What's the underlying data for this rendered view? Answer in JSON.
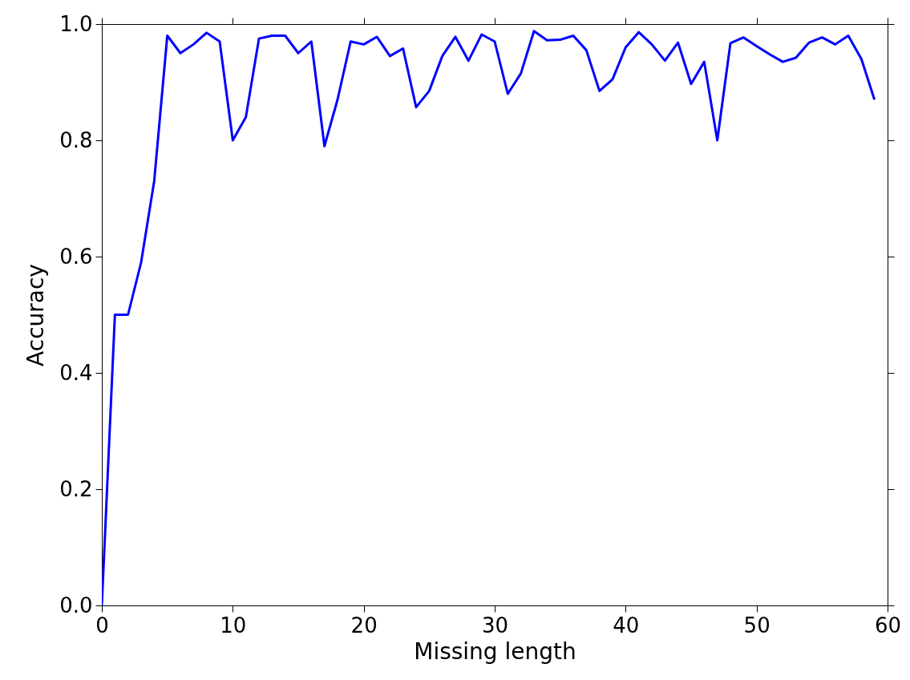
{
  "chart_data": {
    "type": "line",
    "xlabel": "Missing length",
    "ylabel": "Accuracy",
    "x": [
      0,
      1,
      2,
      3,
      4,
      5,
      6,
      7,
      8,
      9,
      10,
      11,
      12,
      13,
      14,
      15,
      16,
      17,
      18,
      19,
      20,
      21,
      22,
      23,
      24,
      25,
      26,
      27,
      28,
      29,
      30,
      31,
      32,
      33,
      34,
      35,
      36,
      37,
      38,
      39,
      40,
      41,
      42,
      43,
      44,
      45,
      46,
      47,
      48,
      49,
      50,
      51,
      52,
      53,
      54,
      55,
      56,
      57,
      58,
      59
    ],
    "series": [
      {
        "color": "#0000ff",
        "values": [
          0,
          0.5,
          0.5,
          0.59,
          0.73,
          0.98,
          0.95,
          0.965,
          0.985,
          0.97,
          0.8,
          0.84,
          0.975,
          0.98,
          0.98,
          0.95,
          0.97,
          0.79,
          0.87,
          0.97,
          0.965,
          0.978,
          0.945,
          0.958,
          0.857,
          0.885,
          0.945,
          0.978,
          0.937,
          0.982,
          0.97,
          0.88,
          0.915,
          0.988,
          0.972,
          0.973,
          0.98,
          0.955,
          0.885,
          0.905,
          0.96,
          0.986,
          0.965,
          0.937,
          0.968,
          0.897,
          0.935,
          0.8,
          0.967,
          0.977,
          0.962,
          0.948,
          0.935,
          0.942,
          0.968,
          0.977,
          0.965,
          0.98,
          0.94,
          0.87
        ]
      }
    ],
    "xlim": [
      0,
      60
    ],
    "xticks": [
      0,
      10,
      20,
      30,
      40,
      50,
      60
    ],
    "ylim": [
      0,
      1.0
    ],
    "yticks": [
      {
        "value": 0,
        "label": "0.0"
      },
      {
        "value": 0.2,
        "label": "0.2"
      },
      {
        "value": 0.4,
        "label": "0.4"
      },
      {
        "value": 0.6,
        "label": "0.6"
      },
      {
        "value": 0.8,
        "label": "0.8"
      },
      {
        "value": 1.0,
        "label": "1.0"
      }
    ],
    "grid": false,
    "marker": "none",
    "line_style": "solid"
  }
}
